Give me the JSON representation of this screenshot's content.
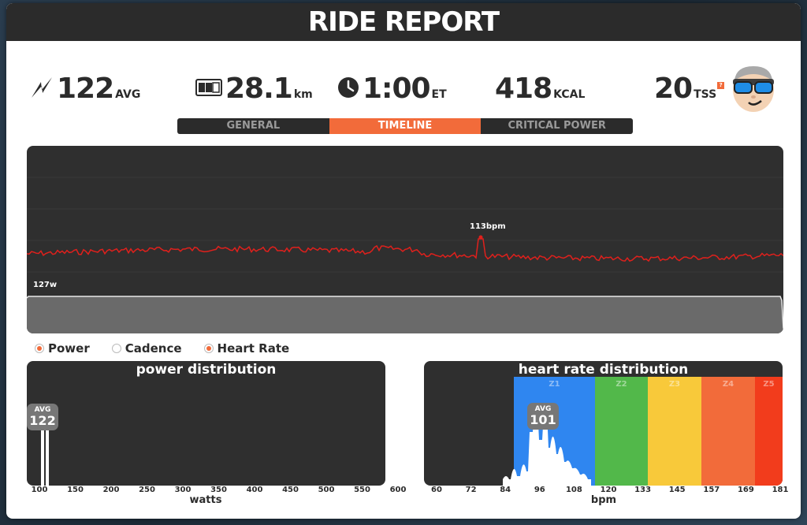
{
  "header": {
    "title": "RIDE REPORT"
  },
  "stats": {
    "power": {
      "value": "122",
      "unit": "AVG",
      "icon": "lightning-icon"
    },
    "distance": {
      "value": "28.1",
      "unit": "km",
      "icon": "odometer-icon"
    },
    "time": {
      "value": "1:00",
      "unit": "ET",
      "icon": "clock-icon"
    },
    "calories": {
      "value": "418",
      "unit": "KCAL"
    },
    "tss": {
      "value": "20",
      "unit": "TSS",
      "help": "?"
    }
  },
  "tabs": [
    {
      "label": "GENERAL",
      "active": false
    },
    {
      "label": "TIMELINE",
      "active": true
    },
    {
      "label": "CRITICAL POWER",
      "active": false
    }
  ],
  "timeline": {
    "hr_peak_label": "113bpm",
    "power_label": "127w",
    "colors": {
      "heart_rate": "#e0201c",
      "power_fill": "#6a6a6a",
      "background": "#2f2f2f"
    }
  },
  "legend": [
    {
      "label": "Power",
      "checked": true
    },
    {
      "label": "Cadence",
      "checked": false
    },
    {
      "label": "Heart Rate",
      "checked": true
    }
  ],
  "power_distribution": {
    "title": "power distribution",
    "avg_label": "AVG",
    "avg_value": "122",
    "axis_title": "watts",
    "ticks": [
      "100",
      "150",
      "200",
      "250",
      "300",
      "350",
      "400",
      "450",
      "500",
      "550",
      "600"
    ]
  },
  "hr_distribution": {
    "title": "heart rate distribution",
    "avg_label": "AVG",
    "avg_value": "101",
    "axis_title": "bpm",
    "ticks": [
      "60",
      "72",
      "84",
      "96",
      "108",
      "120",
      "133",
      "145",
      "157",
      "169",
      "181"
    ],
    "zones": [
      {
        "label": "Z1",
        "color": "#2f86f0"
      },
      {
        "label": "Z2",
        "color": "#52b84a"
      },
      {
        "label": "Z3",
        "color": "#f8c93a"
      },
      {
        "label": "Z4",
        "color": "#f26b3a"
      },
      {
        "label": "Z5",
        "color": "#f23c1c"
      }
    ]
  }
}
